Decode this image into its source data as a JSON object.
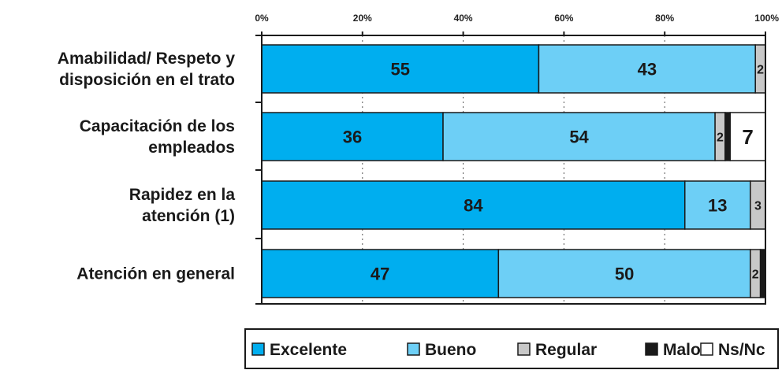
{
  "chart_data": {
    "type": "bar",
    "orientation": "horizontal",
    "stacked": true,
    "title": "",
    "xlabel": "",
    "ylabel": "",
    "xlim": [
      0,
      100
    ],
    "x_ticks": [
      "0%",
      "20%",
      "40%",
      "60%",
      "80%",
      "100%"
    ],
    "grid": "vertical dotted",
    "legend_position": "bottom-right",
    "categories": [
      [
        "Amabilidad/ Respeto y",
        "disposición en el trato"
      ],
      [
        "Capacitación de los",
        "empleados"
      ],
      [
        "Rapidez en la",
        "atención (1)"
      ],
      [
        "Atención en general"
      ]
    ],
    "series": [
      {
        "name": "Excelente",
        "color": "#00aeef",
        "values": [
          55,
          36,
          84,
          47
        ],
        "labels": [
          "55",
          "36",
          "84",
          "47"
        ]
      },
      {
        "name": "Bueno",
        "color": "#6dcff6",
        "values": [
          43,
          54,
          13,
          50
        ],
        "labels": [
          "43",
          "54",
          "13",
          "50"
        ]
      },
      {
        "name": "Regular",
        "color": "#c8c8c8",
        "values": [
          2,
          2,
          3,
          2
        ],
        "labels": [
          "2",
          "2",
          "3",
          "2"
        ]
      },
      {
        "name": "Malo",
        "color": "#1a1a1a",
        "values": [
          0,
          1,
          0,
          1
        ],
        "labels": [
          "",
          "",
          "",
          ""
        ]
      },
      {
        "name": "Ns/Nc",
        "color": "#ffffff",
        "values": [
          0,
          7,
          0,
          0
        ],
        "labels": [
          "",
          "7",
          "",
          ""
        ]
      }
    ]
  }
}
